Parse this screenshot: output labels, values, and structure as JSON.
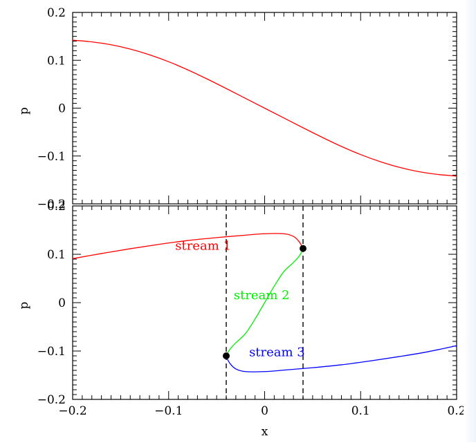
{
  "chart_data": [
    {
      "type": "line",
      "xlim": [
        -0.2,
        0.2
      ],
      "ylim": [
        -0.2,
        0.2
      ],
      "ylabel": "p",
      "xlabel": "",
      "y_ticks": [
        {
          "value": -0.2,
          "label": "−0.2"
        },
        {
          "value": -0.1,
          "label": "−0.1"
        },
        {
          "value": 0,
          "label": "0"
        },
        {
          "value": 0.1,
          "label": "0.1"
        },
        {
          "value": 0.2,
          "label": "0.2"
        }
      ],
      "x_ticks": [
        -0.2,
        -0.1,
        0,
        0.1,
        0.2
      ],
      "grid": false,
      "series": [
        {
          "color": "#ff0000",
          "x": [
            -0.2,
            -0.18,
            -0.16,
            -0.14,
            -0.12,
            -0.1,
            -0.08,
            -0.06,
            -0.04,
            -0.02,
            0,
            0.02,
            0.04,
            0.06,
            0.08,
            0.1,
            0.12,
            0.14,
            0.16,
            0.18,
            0.2
          ],
          "y": [
            0.142,
            0.1385,
            0.1325,
            0.1235,
            0.1115,
            0.097,
            0.08,
            0.061,
            0.041,
            0.0205,
            0,
            -0.0205,
            -0.041,
            -0.061,
            -0.08,
            -0.097,
            -0.1115,
            -0.1235,
            -0.1325,
            -0.1385,
            -0.142
          ]
        }
      ]
    },
    {
      "type": "line",
      "xlim": [
        -0.2,
        0.2
      ],
      "ylim": [
        -0.2,
        0.2
      ],
      "xlabel": "x",
      "ylabel": "p",
      "x_ticks": [
        {
          "value": -0.2,
          "label": "−0.2"
        },
        {
          "value": -0.1,
          "label": "−0.1"
        },
        {
          "value": 0,
          "label": "0"
        },
        {
          "value": 0.1,
          "label": "0.1"
        },
        {
          "value": 0.2,
          "label": "0.2"
        }
      ],
      "y_ticks": [
        {
          "value": -0.2,
          "label": "−0.2"
        },
        {
          "value": -0.1,
          "label": "−0.1"
        },
        {
          "value": 0,
          "label": "0"
        },
        {
          "value": 0.1,
          "label": "0.1"
        },
        {
          "value": 0.2,
          "label": "0.2"
        }
      ],
      "grid": false,
      "series": [
        {
          "name": "stream 1",
          "color": "#ff0000",
          "x": [
            -0.2,
            -0.17,
            -0.14,
            -0.11,
            -0.08,
            -0.05,
            -0.02,
            0,
            0.02,
            0.03,
            0.036,
            0.04
          ],
          "y": [
            0.091,
            0.1015,
            0.1115,
            0.1205,
            0.1285,
            0.1345,
            0.1395,
            0.1425,
            0.1425,
            0.137,
            0.126,
            0.112
          ]
        },
        {
          "name": "stream 2",
          "color": "#00ee00",
          "x": [
            -0.04,
            -0.036,
            -0.03,
            -0.02,
            -0.01,
            0,
            0.01,
            0.02,
            0.03,
            0.036,
            0.04
          ],
          "y": [
            -0.11,
            -0.096,
            -0.083,
            -0.064,
            -0.034,
            0,
            0.034,
            0.064,
            0.083,
            0.096,
            0.11
          ]
        },
        {
          "name": "stream 3",
          "color": "#0000ff",
          "x": [
            -0.04,
            -0.036,
            -0.03,
            -0.02,
            0,
            0.02,
            0.05,
            0.08,
            0.11,
            0.14,
            0.17,
            0.2
          ],
          "y": [
            -0.112,
            -0.126,
            -0.137,
            -0.1425,
            -0.1425,
            -0.1395,
            -0.1345,
            -0.1285,
            -0.1205,
            -0.1115,
            -0.1015,
            -0.089
          ]
        }
      ],
      "dashed_vlines": [
        -0.04,
        0.04
      ],
      "points": [
        {
          "x": 0.04,
          "y": 0.112
        },
        {
          "x": -0.04,
          "y": -0.11
        }
      ],
      "annotations": [
        {
          "text": "stream 1",
          "x": -0.035,
          "y": 0.109,
          "color": "#ff0000"
        },
        {
          "text": "stream 2",
          "x": 0.026,
          "y": 0.007,
          "color": "#00ee00"
        },
        {
          "text": "stream 3",
          "x": 0.042,
          "y": -0.111,
          "color": "#0000ff"
        }
      ]
    }
  ]
}
